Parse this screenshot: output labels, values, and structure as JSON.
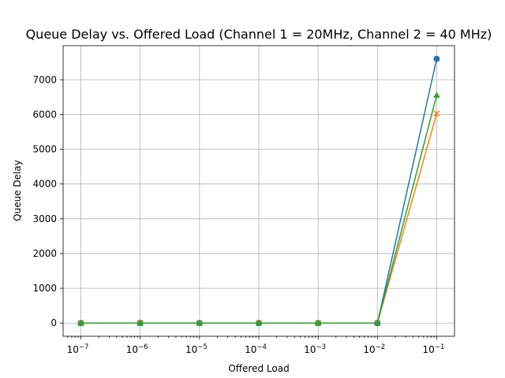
{
  "chart_data": {
    "type": "line",
    "title": "Queue Delay vs. Offered Load (Channel 1 = 20MHz, Channel 2 = 40 MHz)",
    "xlabel": "Offered Load",
    "ylabel": "Queue Delay",
    "xscale": "log",
    "x": [
      1e-07,
      1e-06,
      1e-05,
      0.0001,
      0.001,
      0.01,
      0.1
    ],
    "x_tick_labels": [
      {
        "base": "10",
        "exp": "−7"
      },
      {
        "base": "10",
        "exp": "−6"
      },
      {
        "base": "10",
        "exp": "−5"
      },
      {
        "base": "10",
        "exp": "−4"
      },
      {
        "base": "10",
        "exp": "−3"
      },
      {
        "base": "10",
        "exp": "−2"
      },
      {
        "base": "10",
        "exp": "−1"
      }
    ],
    "y_ticks": [
      0,
      1000,
      2000,
      3000,
      4000,
      5000,
      6000,
      7000
    ],
    "ylim": [
      -380,
      7980
    ],
    "xlim_log10": [
      -7.3,
      -0.7
    ],
    "grid": true,
    "series": [
      {
        "marker": "circle",
        "color": "#1f77b4",
        "values": [
          0,
          0,
          0,
          0,
          0,
          0,
          7600
        ]
      },
      {
        "marker": "x",
        "color": "#ff7f0e",
        "values": [
          0,
          0,
          0,
          0,
          0,
          0,
          6030
        ]
      },
      {
        "marker": "triangle",
        "color": "#2ca02c",
        "values": [
          0,
          0,
          0,
          0,
          0,
          0,
          6560
        ]
      }
    ]
  }
}
